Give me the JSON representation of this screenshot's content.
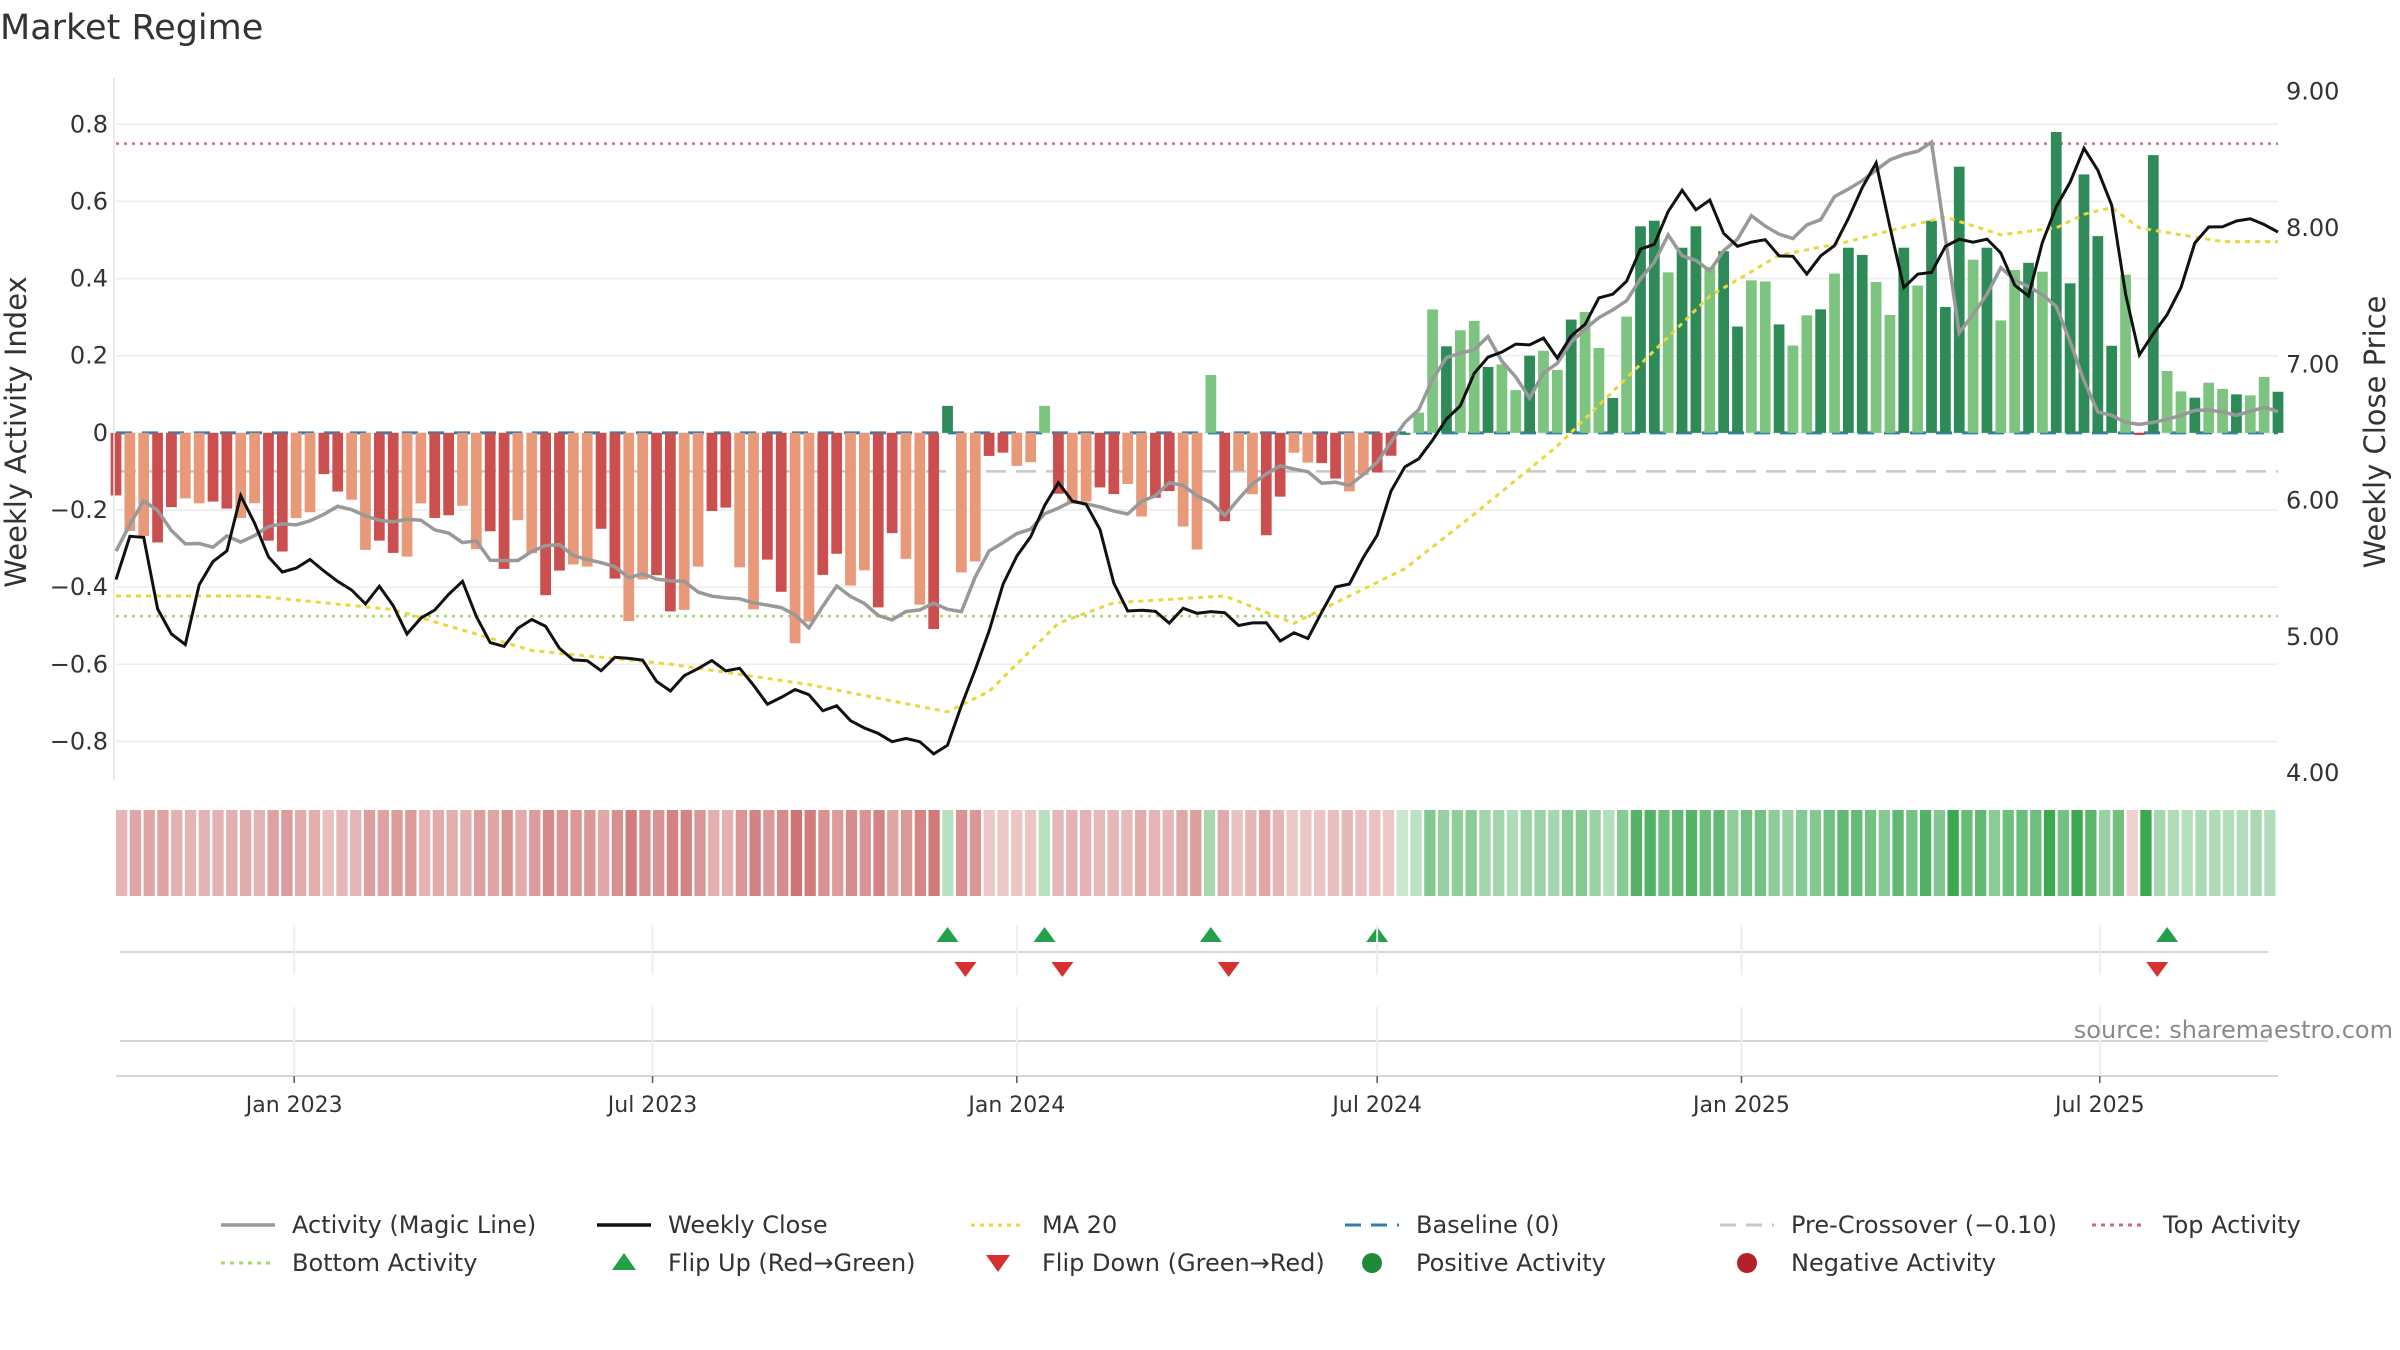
{
  "title": "Market Regime",
  "source": "source: sharemaestro.com",
  "axes": {
    "left_label": "Weekly Activity Index",
    "right_label": "Weekly Close Price",
    "left_ticks": [
      0.8,
      0.6,
      0.4,
      0.2,
      0,
      -0.2,
      -0.4,
      -0.6,
      -0.8
    ],
    "left_tick_labels": [
      "0.8",
      "0.6",
      "0.4",
      "0.2",
      "0",
      "−0.2",
      "−0.4",
      "−0.6",
      "−0.8"
    ],
    "right_ticks": [
      9,
      8,
      7,
      6,
      5,
      4
    ],
    "right_tick_labels": [
      "9.00",
      "8.00",
      "7.00",
      "6.00",
      "5.00",
      "4.00"
    ],
    "date_ticks": [
      "2023-01-01",
      "2023-07-01",
      "2024-01-01",
      "2024-07-01",
      "2025-01-01",
      "2025-07-01"
    ],
    "date_tick_labels": [
      "Jan 2023",
      "Jul 2023",
      "Jan 2024",
      "Jul 2024",
      "Jan 2025",
      "Jul 2025"
    ]
  },
  "legend": [
    {
      "label": "Activity (Magic Line)",
      "kind": "line",
      "color": "#999999"
    },
    {
      "label": "Weekly Close",
      "kind": "line",
      "color": "#111111"
    },
    {
      "label": "MA 20",
      "kind": "dotted",
      "color": "#e8d83a"
    },
    {
      "label": "Baseline (0)",
      "kind": "dashed",
      "color": "#2f7fb0"
    },
    {
      "label": "Pre-Crossover (−0.10)",
      "kind": "dashed",
      "color": "#c8c8c8"
    },
    {
      "label": "Top Activity",
      "kind": "dotted",
      "color": "#d16a7c"
    },
    {
      "label": "Bottom Activity",
      "kind": "dotted",
      "color": "#a7d66a"
    },
    {
      "label": "Flip Up (Red→Green)",
      "kind": "up",
      "color": "#22a04a"
    },
    {
      "label": "Flip Down (Green→Red)",
      "kind": "down",
      "color": "#d63131"
    },
    {
      "label": "Positive Activity",
      "kind": "dot",
      "color": "#1f8b3a"
    },
    {
      "label": "Negative Activity",
      "kind": "dot",
      "color": "#b5202a"
    }
  ],
  "chart_data": {
    "type": "bar",
    "frequency": "weekly",
    "start": "2022-10-03",
    "end": "2025-09-29",
    "left_ylim": [
      -0.9,
      0.92
    ],
    "right_ylim": [
      3.95,
      9.1
    ],
    "reference_lines": {
      "baseline": 0,
      "pre_crossover": -0.1,
      "top_activity": 0.75,
      "bottom_activity": -0.475
    },
    "activity_anchors": [
      [
        0,
        -0.3
      ],
      [
        2,
        -0.17
      ],
      [
        5,
        -0.3
      ],
      [
        9,
        -0.27
      ],
      [
        12,
        -0.24
      ],
      [
        16,
        -0.19
      ],
      [
        20,
        -0.22
      ],
      [
        24,
        -0.25
      ],
      [
        28,
        -0.34
      ],
      [
        32,
        -0.29
      ],
      [
        36,
        -0.36
      ],
      [
        40,
        -0.38
      ],
      [
        44,
        -0.42
      ],
      [
        48,
        -0.45
      ],
      [
        50,
        -0.5
      ],
      [
        52,
        -0.4
      ],
      [
        55,
        -0.48
      ],
      [
        58,
        -0.46
      ],
      [
        61,
        -0.45
      ],
      [
        63,
        -0.32
      ],
      [
        67,
        -0.22
      ],
      [
        70,
        -0.17
      ],
      [
        73,
        -0.22
      ],
      [
        76,
        -0.13
      ],
      [
        78,
        -0.16
      ],
      [
        80,
        -0.2
      ],
      [
        84,
        -0.08
      ],
      [
        87,
        -0.13
      ],
      [
        90,
        -0.12
      ],
      [
        93,
        0.02
      ],
      [
        96,
        0.18
      ],
      [
        99,
        0.25
      ],
      [
        102,
        0.1
      ],
      [
        106,
        0.27
      ],
      [
        109,
        0.35
      ],
      [
        112,
        0.5
      ],
      [
        115,
        0.42
      ],
      [
        118,
        0.56
      ],
      [
        121,
        0.5
      ],
      [
        124,
        0.6
      ],
      [
        128,
        0.7
      ],
      [
        131,
        0.74
      ],
      [
        133,
        0.25
      ],
      [
        136,
        0.42
      ],
      [
        140,
        0.32
      ],
      [
        143,
        0.05
      ],
      [
        146,
        0.01
      ],
      [
        152,
        0.06
      ]
    ],
    "close_anchors": [
      [
        0,
        5.5
      ],
      [
        1,
        5.8
      ],
      [
        2,
        5.8
      ],
      [
        3,
        5.15
      ],
      [
        5,
        5.0
      ],
      [
        6,
        5.35
      ],
      [
        8,
        5.6
      ],
      [
        9,
        5.95
      ],
      [
        12,
        5.4
      ],
      [
        14,
        5.6
      ],
      [
        15,
        5.45
      ],
      [
        17,
        5.35
      ],
      [
        19,
        5.3
      ],
      [
        21,
        5.0
      ],
      [
        25,
        5.35
      ],
      [
        28,
        4.85
      ],
      [
        30,
        5.1
      ],
      [
        33,
        4.8
      ],
      [
        36,
        4.8
      ],
      [
        38,
        4.75
      ],
      [
        41,
        4.65
      ],
      [
        43,
        4.9
      ],
      [
        46,
        4.6
      ],
      [
        49,
        4.55
      ],
      [
        52,
        4.45
      ],
      [
        55,
        4.3
      ],
      [
        58,
        4.2
      ],
      [
        60,
        4.25
      ],
      [
        62,
        4.85
      ],
      [
        64,
        5.35
      ],
      [
        66,
        5.7
      ],
      [
        68,
        6.05
      ],
      [
        70,
        5.95
      ],
      [
        73,
        5.25
      ],
      [
        76,
        5.15
      ],
      [
        79,
        5.1
      ],
      [
        82,
        5.15
      ],
      [
        85,
        4.95
      ],
      [
        88,
        5.3
      ],
      [
        91,
        5.75
      ],
      [
        93,
        6.3
      ],
      [
        95,
        6.45
      ],
      [
        98,
        6.9
      ],
      [
        101,
        7.15
      ],
      [
        104,
        7.1
      ],
      [
        107,
        7.45
      ],
      [
        110,
        7.8
      ],
      [
        113,
        8.25
      ],
      [
        115,
        8.15
      ],
      [
        117,
        7.9
      ],
      [
        119,
        7.95
      ],
      [
        122,
        7.7
      ],
      [
        125,
        8.0
      ],
      [
        127,
        8.5
      ],
      [
        129,
        7.6
      ],
      [
        131,
        7.7
      ],
      [
        133,
        8.0
      ],
      [
        135,
        7.9
      ],
      [
        138,
        7.5
      ],
      [
        140,
        8.2
      ],
      [
        142,
        8.6
      ],
      [
        144,
        8.2
      ],
      [
        146,
        7.0
      ],
      [
        148,
        7.3
      ],
      [
        150,
        7.8
      ],
      [
        152,
        8.05
      ]
    ],
    "ma20_anchors": [
      [
        0,
        5.3
      ],
      [
        10,
        5.3
      ],
      [
        20,
        5.2
      ],
      [
        30,
        4.9
      ],
      [
        40,
        4.8
      ],
      [
        50,
        4.65
      ],
      [
        55,
        4.55
      ],
      [
        60,
        4.45
      ],
      [
        63,
        4.6
      ],
      [
        68,
        5.1
      ],
      [
        72,
        5.25
      ],
      [
        80,
        5.3
      ],
      [
        85,
        5.1
      ],
      [
        88,
        5.25
      ],
      [
        93,
        5.5
      ],
      [
        98,
        5.9
      ],
      [
        104,
        6.4
      ],
      [
        110,
        7.0
      ],
      [
        115,
        7.5
      ],
      [
        120,
        7.8
      ],
      [
        125,
        7.9
      ],
      [
        128,
        7.98
      ],
      [
        132,
        8.08
      ],
      [
        136,
        7.95
      ],
      [
        140,
        8.0
      ],
      [
        142,
        8.1
      ],
      [
        144,
        8.15
      ],
      [
        146,
        8.0
      ],
      [
        149,
        7.95
      ],
      [
        152,
        7.9
      ]
    ],
    "bar_anchors": [
      [
        0,
        -0.2
      ],
      [
        3,
        -0.3
      ],
      [
        5,
        -0.15
      ],
      [
        8,
        -0.2
      ],
      [
        12,
        -0.3
      ],
      [
        15,
        -0.12
      ],
      [
        18,
        -0.25
      ],
      [
        21,
        -0.28
      ],
      [
        24,
        -0.18
      ],
      [
        27,
        -0.32
      ],
      [
        29,
        -0.28
      ],
      [
        31,
        -0.42
      ],
      [
        35,
        -0.32
      ],
      [
        38,
        -0.45
      ],
      [
        41,
        -0.4
      ],
      [
        44,
        -0.2
      ],
      [
        46,
        -0.42
      ],
      [
        49,
        -0.45
      ],
      [
        52,
        -0.35
      ],
      [
        54,
        -0.47
      ],
      [
        56,
        -0.3
      ],
      [
        59,
        -0.5
      ],
      [
        61,
        -0.42
      ],
      [
        62,
        -0.28
      ],
      [
        63,
        -0.05
      ],
      [
        65,
        -0.08
      ],
      [
        67,
        -0.12
      ],
      [
        69,
        -0.2
      ],
      [
        71,
        -0.15
      ],
      [
        74,
        -0.2
      ],
      [
        76,
        -0.18
      ],
      [
        78,
        -0.25
      ],
      [
        80,
        -0.3
      ],
      [
        81,
        -0.1
      ],
      [
        83,
        -0.25
      ],
      [
        85,
        -0.05
      ],
      [
        87,
        -0.1
      ],
      [
        89,
        -0.15
      ],
      [
        91,
        -0.12
      ],
      [
        92,
        -0.05
      ],
      [
        94,
        0.05
      ],
      [
        96,
        0.25
      ],
      [
        99,
        0.2
      ],
      [
        101,
        0.15
      ],
      [
        104,
        0.2
      ],
      [
        106,
        0.3
      ],
      [
        108,
        0.12
      ],
      [
        110,
        0.45
      ],
      [
        112,
        0.42
      ],
      [
        114,
        0.52
      ],
      [
        116,
        0.4
      ],
      [
        118,
        0.35
      ],
      [
        120,
        0.32
      ],
      [
        122,
        0.25
      ],
      [
        124,
        0.38
      ],
      [
        126,
        0.42
      ],
      [
        128,
        0.35
      ],
      [
        130,
        0.5
      ],
      [
        132,
        0.28
      ],
      [
        134,
        0.52
      ],
      [
        136,
        0.4
      ],
      [
        138,
        0.45
      ],
      [
        140,
        0.48
      ],
      [
        142,
        0.55
      ],
      [
        144,
        0.3
      ],
      [
        146,
        0.05
      ],
      [
        148,
        0.18
      ],
      [
        150,
        0.1
      ],
      [
        152,
        0.12
      ]
    ],
    "bar_spikes": [
      [
        60,
        0.07
      ],
      [
        67,
        0.07
      ],
      [
        79,
        0.15
      ],
      [
        95,
        0.32
      ],
      [
        98,
        0.29
      ],
      [
        102,
        0.2
      ],
      [
        107,
        0.22
      ],
      [
        111,
        0.55
      ],
      [
        113,
        0.48
      ],
      [
        115,
        0.43
      ],
      [
        125,
        0.48
      ],
      [
        129,
        0.48
      ],
      [
        131,
        0.55
      ],
      [
        133,
        0.69
      ],
      [
        135,
        0.48
      ],
      [
        140,
        0.78
      ],
      [
        142,
        0.67
      ],
      [
        145,
        0.41
      ],
      [
        147,
        0.72
      ]
    ],
    "flip_up_weeks": [
      60,
      67,
      79,
      91,
      148
    ],
    "flip_down_weeks": [
      61,
      68,
      80,
      147
    ],
    "regime_strip": "weekly activity sign and intensity (red = negative, green = positive)"
  }
}
